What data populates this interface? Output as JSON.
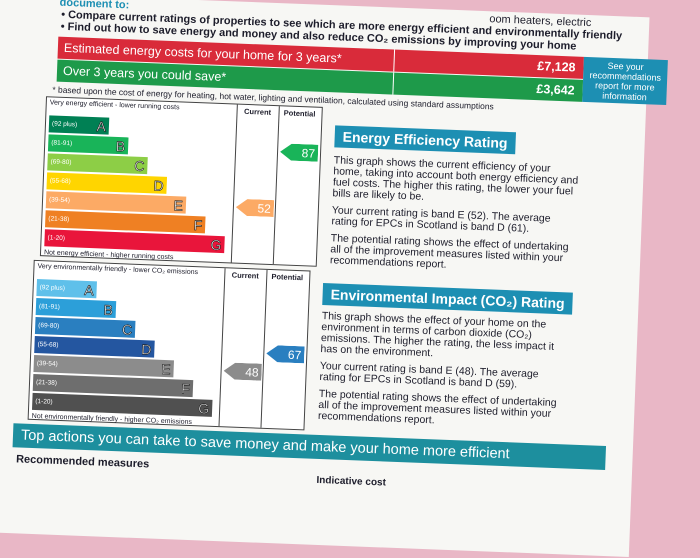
{
  "header": {
    "intro": "document to:",
    "top_right": "oom heaters, electric",
    "bullets": [
      "Compare current ratings of properties to see which are more energy efficient and environmentally friendly",
      "Find out how to save energy and money and also reduce CO₂ emissions by improving your home"
    ]
  },
  "costs": {
    "rows": [
      {
        "label": "Estimated energy costs for your home for 3 years*",
        "value": "£7,128"
      },
      {
        "label": "Over 3 years you could save*",
        "value": "£3,642"
      }
    ],
    "note": "See your recommendations report for more information",
    "footnote": "* based upon the cost of energy for heating, hot water, lighting and ventilation, calculated using standard assumptions"
  },
  "efficiency": {
    "top": "Very energy efficient - lower running costs",
    "bottom": "Not energy efficient - higher running costs",
    "headers": [
      "Current",
      "Potential"
    ],
    "bands": [
      {
        "range": "(92 plus)",
        "letter": "A"
      },
      {
        "range": "(81-91)",
        "letter": "B"
      },
      {
        "range": "(69-80)",
        "letter": "C"
      },
      {
        "range": "(55-68)",
        "letter": "D"
      },
      {
        "range": "(39-54)",
        "letter": "E"
      },
      {
        "range": "(21-38)",
        "letter": "F"
      },
      {
        "range": "(1-20)",
        "letter": "G"
      }
    ],
    "current": 52,
    "potential": 87,
    "title": "Energy Efficiency Rating",
    "paragraphs": [
      "This graph shows the current efficiency of your home, taking into account both energy efficiency and fuel costs. The higher this rating, the lower your fuel bills are likely to be.",
      "Your current rating is band E (52). The average rating for EPCs in Scotland is band D (61).",
      "The potential rating shows the effect of undertaking all of the improvement measures listed within your recommendations report."
    ]
  },
  "environment": {
    "top": "Very environmentally friendly - lower CO₂ emissions",
    "bottom": "Not environmentally friendly - higher CO₂ emissions",
    "headers": [
      "Current",
      "Potential"
    ],
    "bands": [
      {
        "range": "(92 plus)",
        "letter": "A"
      },
      {
        "range": "(81-91)",
        "letter": "B"
      },
      {
        "range": "(69-80)",
        "letter": "C"
      },
      {
        "range": "(55-68)",
        "letter": "D"
      },
      {
        "range": "(39-54)",
        "letter": "E"
      },
      {
        "range": "(21-38)",
        "letter": "F"
      },
      {
        "range": "(1-20)",
        "letter": "G"
      }
    ],
    "current": 48,
    "potential": 67,
    "title": "Environmental Impact (CO₂) Rating",
    "paragraphs": [
      "This graph shows the effect of your home on the environment in terms of carbon dioxide (CO₂) emissions. The higher the rating, the less impact it has on the environment.",
      "Your current rating is band E (48). The average rating for EPCs in Scotland is band D (59).",
      "The potential rating shows the effect of undertaking all of the improvement measures listed within your recommendations report."
    ]
  },
  "actions": {
    "title": "Top actions you can take to save money and make your home more efficient",
    "measures": "Recommended measures",
    "cost": "Indicative cost"
  }
}
